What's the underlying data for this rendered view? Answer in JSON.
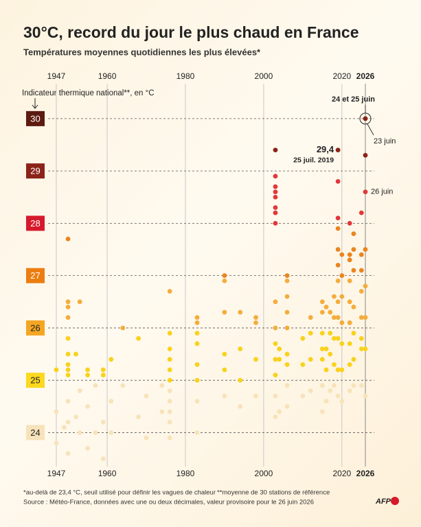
{
  "chart_data": {
    "type": "scatter",
    "title": "30°C, record du jour le plus chaud en France",
    "subtitle": "Températures moyennes quotidiennes les plus élevées*",
    "y_label": "Indicateur thermique national**, en °C",
    "xlim": [
      1947,
      2026
    ],
    "xticks": [
      1947,
      1960,
      1980,
      2000,
      2020,
      2026
    ],
    "ylim": [
      23.35,
      30.3
    ],
    "yticks": [
      24,
      25,
      26,
      27,
      28,
      29,
      30
    ],
    "tick_colors": [
      "#f7e3ba",
      "#fcd81f",
      "#f4a623",
      "#ec7d10",
      "#d7192c",
      "#8b2318",
      "#5c1a10"
    ],
    "point_colors": [
      "#f7e3ba",
      "#f8d21c",
      "#f3ad3d",
      "#ea841f",
      "#e0383a",
      "#8b2318",
      "#8b2318"
    ],
    "grid": true,
    "x": [
      1947,
      1947,
      1947,
      1949,
      1950,
      1950,
      1950,
      1950,
      1950,
      1950,
      1950,
      1950,
      1950,
      1950,
      1950,
      1950,
      1952,
      1952,
      1953,
      1953,
      1953,
      1955,
      1955,
      1955,
      1955,
      1957,
      1957,
      1959,
      1959,
      1959,
      1959,
      1961,
      1961,
      1961,
      1964,
      1964,
      1968,
      1968,
      1970,
      1970,
      1974,
      1974,
      1976,
      1976,
      1976,
      1976,
      1976,
      1976,
      1976,
      1976,
      1976,
      1976,
      1976,
      1983,
      1983,
      1983,
      1983,
      1983,
      1983,
      1983,
      1983,
      1990,
      1990,
      1990,
      1990,
      1990,
      1990,
      1994,
      1994,
      1994,
      1994,
      1998,
      1998,
      1998,
      1998,
      2003,
      2003,
      2003,
      2003,
      2003,
      2003,
      2003,
      2003,
      2003,
      2003,
      2003,
      2003,
      2003,
      2003,
      2003,
      2004,
      2004,
      2004,
      2006,
      2006,
      2006,
      2006,
      2006,
      2006,
      2006,
      2006,
      2006,
      2010,
      2010,
      2010,
      2012,
      2012,
      2012,
      2012,
      2015,
      2015,
      2015,
      2015,
      2015,
      2015,
      2015,
      2016,
      2016,
      2016,
      2016,
      2017,
      2017,
      2017,
      2017,
      2018,
      2018,
      2018,
      2018,
      2018,
      2019,
      2019,
      2019,
      2019,
      2019,
      2019,
      2019,
      2019,
      2019,
      2019,
      2019,
      2019,
      2020,
      2020,
      2020,
      2020,
      2020,
      2020,
      2020,
      2022,
      2022,
      2022,
      2022,
      2022,
      2022,
      2022,
      2022,
      2022,
      2023,
      2023,
      2023,
      2023,
      2023,
      2023,
      2023,
      2025,
      2025,
      2025,
      2025,
      2025,
      2025,
      2025,
      2025,
      2026,
      2026,
      2026,
      2026,
      2026,
      2026,
      2026,
      2026,
      2026
    ],
    "values": [
      25.2,
      24.4,
      23.8,
      24.1,
      27.7,
      26.5,
      26.4,
      26.2,
      25.8,
      25.5,
      25.3,
      25.2,
      25.1,
      24.6,
      24.2,
      23.6,
      25.5,
      24.3,
      26.5,
      24.8,
      24.0,
      25.2,
      25.1,
      24.5,
      23.7,
      24.9,
      24.0,
      25.2,
      25.1,
      24.2,
      23.5,
      25.4,
      24.6,
      24.0,
      26.0,
      24.9,
      25.8,
      24.3,
      24.7,
      23.9,
      24.9,
      24.4,
      26.7,
      25.9,
      25.6,
      25.4,
      25.2,
      25.0,
      24.8,
      24.6,
      24.4,
      24.2,
      23.9,
      26.2,
      26.1,
      25.9,
      25.7,
      25.3,
      25.0,
      24.6,
      24.0,
      27.0,
      26.9,
      26.3,
      25.5,
      25.2,
      24.7,
      26.3,
      25.6,
      25.0,
      24.5,
      26.2,
      26.1,
      25.4,
      24.7,
      29.4,
      28.9,
      28.7,
      28.6,
      28.5,
      28.3,
      28.2,
      28.0,
      26.5,
      26.0,
      25.7,
      25.4,
      25.1,
      24.7,
      24.3,
      25.6,
      25.4,
      24.4,
      27.0,
      26.9,
      26.6,
      26.3,
      26.0,
      25.5,
      25.3,
      24.9,
      24.5,
      25.8,
      25.3,
      24.7,
      26.2,
      25.9,
      25.4,
      24.8,
      26.5,
      26.3,
      25.9,
      25.6,
      25.4,
      24.9,
      24.4,
      26.4,
      25.6,
      25.2,
      24.6,
      26.3,
      25.9,
      25.5,
      24.8,
      26.6,
      26.2,
      25.8,
      25.3,
      24.9,
      29.4,
      28.8,
      28.1,
      27.9,
      27.5,
      27.2,
      26.9,
      26.5,
      26.2,
      25.8,
      25.2,
      24.7,
      27.4,
      27.0,
      26.6,
      26.1,
      25.7,
      25.2,
      24.6,
      28.0,
      27.4,
      27.3,
      26.9,
      26.5,
      26.1,
      25.7,
      25.3,
      24.8,
      27.8,
      27.5,
      27.1,
      26.4,
      25.9,
      25.4,
      24.9,
      28.2,
      27.4,
      27.1,
      26.7,
      26.2,
      25.8,
      25.6,
      24.9,
      30.0,
      30.0,
      29.3,
      28.6,
      27.5,
      26.8,
      26.2,
      25.6,
      24.7
    ],
    "annotations": [
      "29,4",
      "25 juil. 2019",
      "24 et 25 juin",
      "23 juin",
      "26 juin"
    ],
    "footnote_1": "*au-delà de 23,4 °C, seuil utilisé pour définir les vagues de chaleur",
    "footnote_2": "**moyenne de 30 stations de référence",
    "source": "Source : Météo-France, données avec une ou deux décimales, valeur provisoire pour le 26 juin 2026",
    "logo": "AFP"
  }
}
